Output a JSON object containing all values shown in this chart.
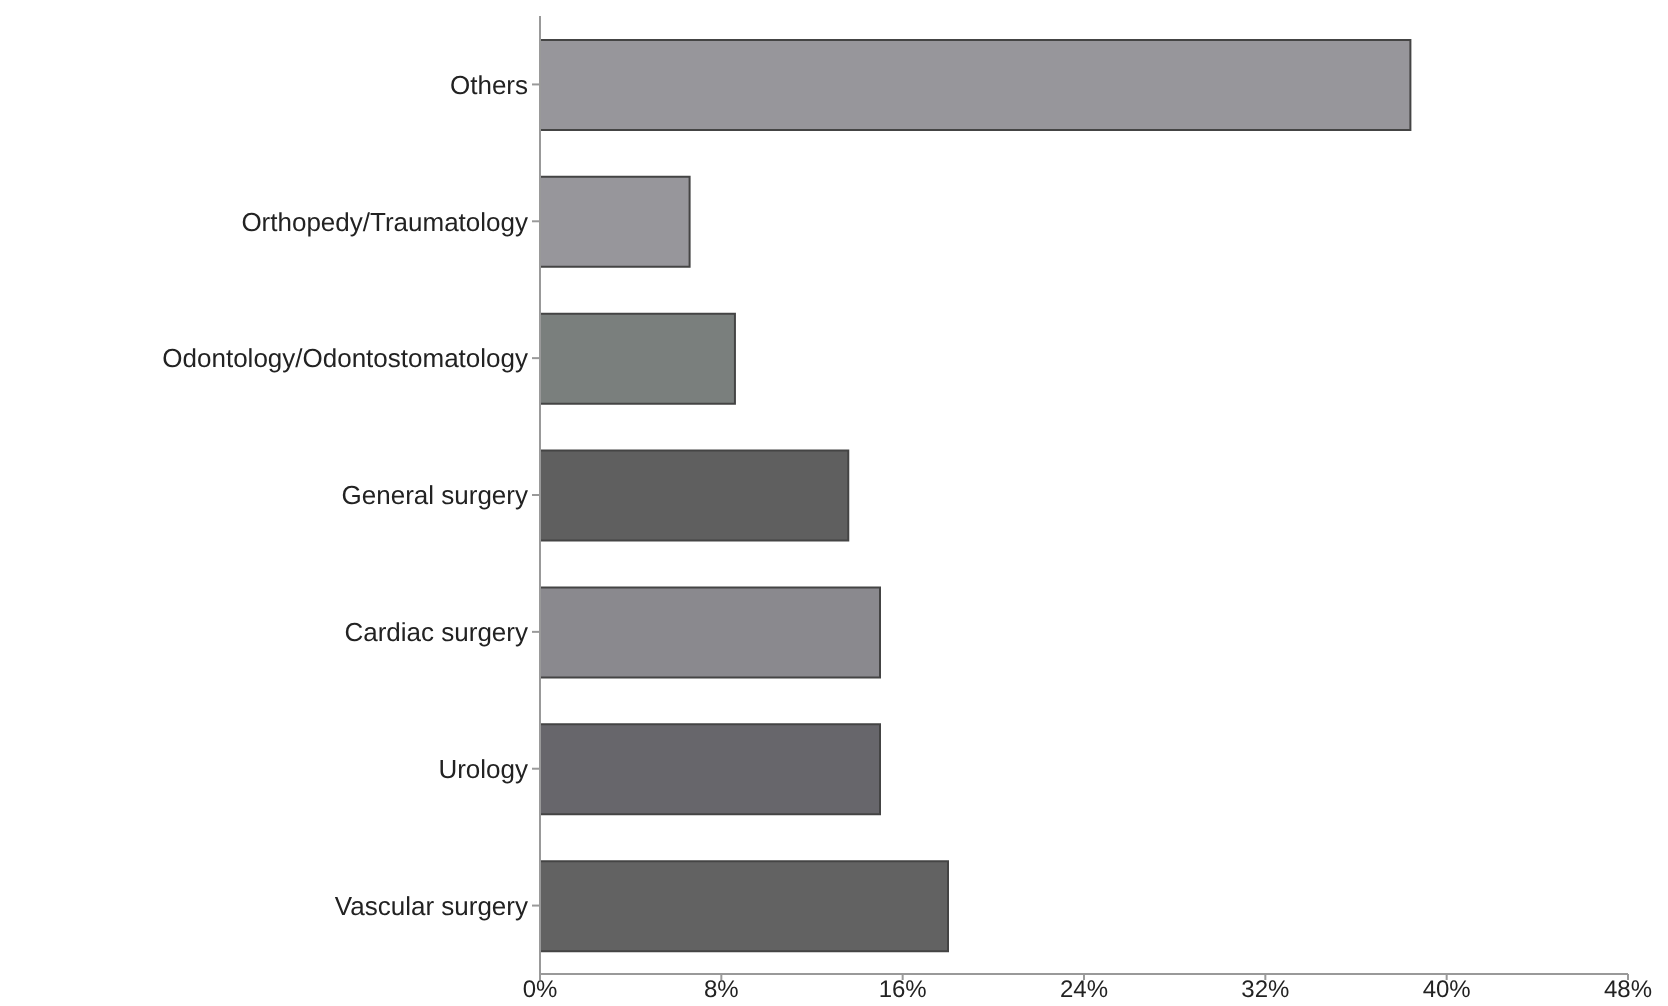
{
  "chart_data": {
    "type": "bar",
    "orientation": "horizontal",
    "categories": [
      "Others",
      "Orthopedy/Traumatology",
      "Odontology/Odontostomatology",
      "General surgery",
      "Cardiac surgery",
      "Urology",
      "Vascular surgery"
    ],
    "values": [
      38.4,
      6.6,
      8.6,
      13.6,
      15.0,
      15.0,
      18.0
    ],
    "colors": [
      "#97969b",
      "#97969b",
      "#7a7f7d",
      "#5f5f5f",
      "#8a898e",
      "#67666b",
      "#626262"
    ],
    "xlim": [
      0,
      48
    ],
    "xticks": [
      {
        "value": 0,
        "label": "0%"
      },
      {
        "value": 8,
        "label": "8%"
      },
      {
        "value": 16,
        "label": "16%"
      },
      {
        "value": 24,
        "label": "24%"
      },
      {
        "value": 32,
        "label": "32%"
      },
      {
        "value": 40,
        "label": "40%"
      },
      {
        "value": 48,
        "label": "48%"
      }
    ],
    "grid": false
  }
}
